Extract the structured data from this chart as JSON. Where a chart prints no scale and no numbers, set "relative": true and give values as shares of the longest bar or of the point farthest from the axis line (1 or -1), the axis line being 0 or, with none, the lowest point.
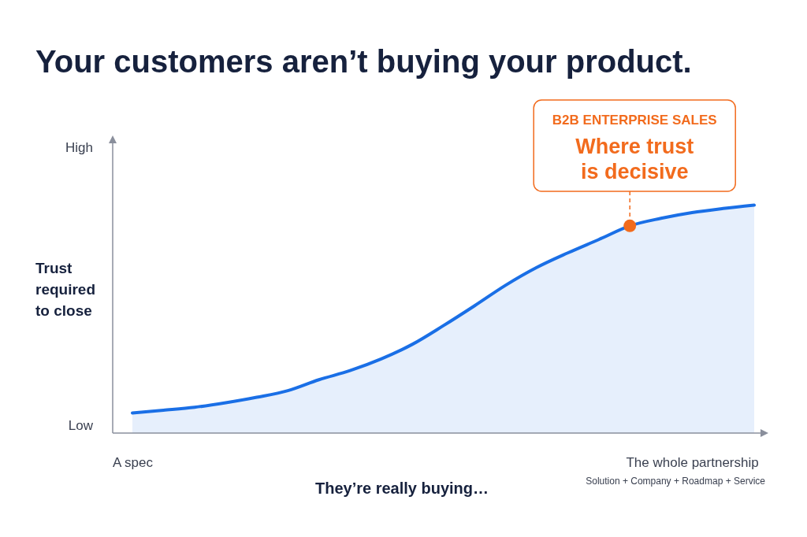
{
  "chart_data": {
    "type": "area",
    "title": "Your customers aren’t buying your product.",
    "xlabel": "They’re really buying…",
    "ylabel": "Trust required to close",
    "relative": true,
    "categories": [
      "A spec",
      null,
      null,
      null,
      null,
      null,
      null,
      null,
      null,
      null,
      null,
      null,
      null,
      null,
      null,
      null,
      null,
      null,
      "The whole partnership",
      null,
      null
    ],
    "series": [
      {
        "color": "#1a6fe6",
        "values": [
          0.088,
          0.1,
          0.113,
          0.133,
          0.157,
          0.186,
          0.234,
          0.274,
          0.325,
          0.389,
          0.471,
          0.558,
          0.648,
          0.726,
          0.79,
          0.849,
          0.909,
          0.942,
          0.967,
          0.985,
          1
        ]
      },
      {
        "type": "scatter",
        "color": "#f26b1d",
        "values": [
          null,
          null,
          null,
          null,
          null,
          null,
          null,
          null,
          null,
          null,
          null,
          null,
          null,
          null,
          null,
          null,
          0.909,
          null,
          null,
          null,
          null
        ]
      }
    ],
    "annotations": [
      "High",
      "Low",
      "Solution + Company + Roadmap + Service",
      "B2B ENTERPRISE SALES",
      "Where trust is decisive"
    ]
  }
}
